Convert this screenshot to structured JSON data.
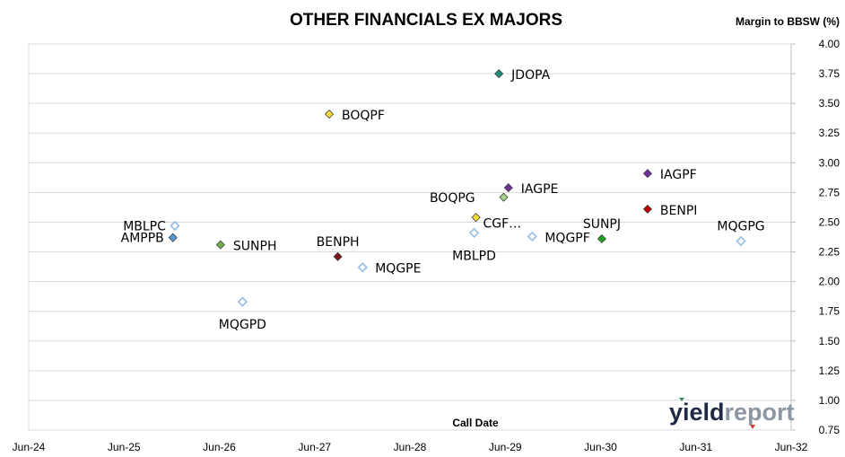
{
  "chart_data": {
    "type": "scatter",
    "title": "OTHER FINANCIALS EX MAJORS",
    "xlabel": "Call Date",
    "ylabel": "Margin to BBSW (%)",
    "xlim": [
      2024.4167,
      2032.4167
    ],
    "ylim": [
      0.75,
      4.0
    ],
    "x_ticks": [
      "Jun-24",
      "Jun-25",
      "Jun-26",
      "Jun-27",
      "Jun-28",
      "Jun-29",
      "Jun-30",
      "Jun-31",
      "Jun-32"
    ],
    "y_ticks": [
      "0.75",
      "1.00",
      "1.25",
      "1.50",
      "1.75",
      "2.00",
      "2.25",
      "2.50",
      "2.75",
      "3.00",
      "3.25",
      "3.50",
      "3.75",
      "4.00"
    ],
    "grid": "horizontal",
    "points": [
      {
        "label": "MBLPC",
        "x": 2025.95,
        "y": 2.47,
        "color": "#9dc3e6",
        "filled": false,
        "label_pos": "left"
      },
      {
        "label": "AMPPB",
        "x": 2025.93,
        "y": 2.37,
        "color": "#5b9bd5",
        "filled": true,
        "label_pos": "left"
      },
      {
        "label": "SUNPH",
        "x": 2026.43,
        "y": 2.31,
        "color": "#70ad47",
        "filled": true,
        "label_pos": "right"
      },
      {
        "label": "MQGPD",
        "x": 2026.66,
        "y": 1.83,
        "color": "#9dc3e6",
        "filled": false,
        "label_pos": "below"
      },
      {
        "label": "BOQPF",
        "x": 2027.57,
        "y": 3.41,
        "color": "#ffe033",
        "filled": true,
        "label_pos": "right"
      },
      {
        "label": "BENPH",
        "x": 2027.66,
        "y": 2.21,
        "color": "#7b1414",
        "filled": true,
        "label_pos": "above"
      },
      {
        "label": "MQGPE",
        "x": 2027.92,
        "y": 2.12,
        "color": "#9dc3e6",
        "filled": false,
        "label_pos": "right"
      },
      {
        "label": "MBLPD",
        "x": 2029.09,
        "y": 2.41,
        "color": "#9dc3e6",
        "filled": false,
        "label_pos": "below"
      },
      {
        "label": "BOQPG",
        "x": 2029.11,
        "y": 2.54,
        "color": "#ffe033",
        "filled": true,
        "label_pos": "above-left"
      },
      {
        "label": "JDOPA",
        "x": 2029.35,
        "y": 3.75,
        "color": "#1a8f7a",
        "filled": true,
        "label_pos": "right"
      },
      {
        "label": "CGF…",
        "x": 2029.4,
        "y": 2.71,
        "color": "#a9d18e",
        "filled": true,
        "label_pos": "below-right"
      },
      {
        "label": "IAGPE",
        "x": 2029.45,
        "y": 2.79,
        "color": "#7030a0",
        "filled": true,
        "label_pos": "right"
      },
      {
        "label": "MQGPF",
        "x": 2029.7,
        "y": 2.38,
        "color": "#9dc3e6",
        "filled": false,
        "label_pos": "right"
      },
      {
        "label": "SUNPJ",
        "x": 2030.43,
        "y": 2.36,
        "color": "#1aa51a",
        "filled": true,
        "label_pos": "above"
      },
      {
        "label": "IAGPF",
        "x": 2030.91,
        "y": 2.91,
        "color": "#7030a0",
        "filled": true,
        "label_pos": "right"
      },
      {
        "label": "BENPI",
        "x": 2030.91,
        "y": 2.61,
        "color": "#c00000",
        "filled": true,
        "label_pos": "right"
      },
      {
        "label": "MQGPG",
        "x": 2031.89,
        "y": 2.34,
        "color": "#9dc3e6",
        "filled": false,
        "label_pos": "above"
      }
    ]
  },
  "logo": {
    "part1": "yield",
    "part2": "report"
  }
}
